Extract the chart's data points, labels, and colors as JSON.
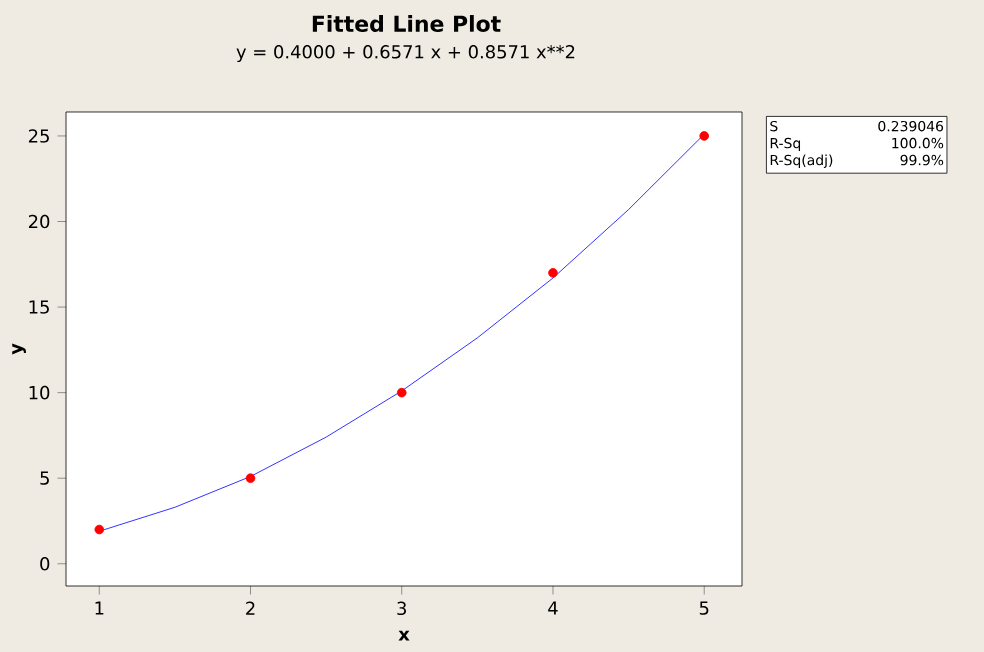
{
  "chart_data": {
    "type": "scatter",
    "title": "Fitted Line Plot",
    "subtitle": "y =  0.4000 + 0.6571 x + 0.8571 x**2",
    "xlabel": "x",
    "ylabel": "y",
    "marker": "circle",
    "color": "#ff0000",
    "x": [
      1,
      2,
      3,
      4,
      5
    ],
    "values": [
      2,
      5,
      10,
      17,
      25
    ],
    "series": [
      {
        "type": "line",
        "marker": "none",
        "color": "#0000ff",
        "x": [
          1,
          1.5,
          2,
          2.5,
          3,
          3.5,
          4,
          4.5,
          5
        ],
        "values": [
          1.9,
          3.3,
          5.1,
          7.4,
          10.1,
          13.2,
          16.7,
          20.7,
          25.1
        ]
      }
    ],
    "xlim": [
      0.78,
      5.25
    ],
    "ylim": [
      -1.3,
      26.4
    ],
    "xticks": [
      1,
      2,
      3,
      4,
      5
    ],
    "yticks": [
      0,
      5,
      10,
      15,
      20,
      25
    ],
    "annotations": [
      "S",
      "0.239046",
      "R-Sq",
      "100.0%",
      "R-Sq(adj)",
      "99.9%"
    ]
  }
}
